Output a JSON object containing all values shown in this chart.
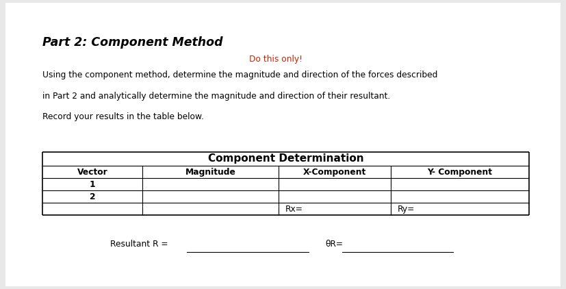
{
  "title": "Part 2: Component Method",
  "subtitle": "Do this only!",
  "subtitle_color": "#cc2200",
  "body_text_line1": "Using the component method, determine the magnitude and direction of the forces described",
  "body_text_line2": "in Part 2 and analytically determine the magnitude and direction of their resultant.",
  "body_text_line3": "Record your results in the table below.",
  "table_title": "Component Determination",
  "col_headers": [
    "Vector",
    "Magnitude",
    "X-Component",
    "Y- Component"
  ],
  "row_labels": [
    "1",
    "2"
  ],
  "rx_label": "Rx=",
  "ry_label": "Ry=",
  "resultant_label": "Resultant R =",
  "theta_label": "θR=",
  "bg_color": "#e8e8e8",
  "page_color": "#ffffff",
  "text_color": "#000000",
  "title_fontsize": 12.5,
  "body_fontsize": 8.8,
  "table_title_fontsize": 11,
  "table_fontsize": 8.8
}
